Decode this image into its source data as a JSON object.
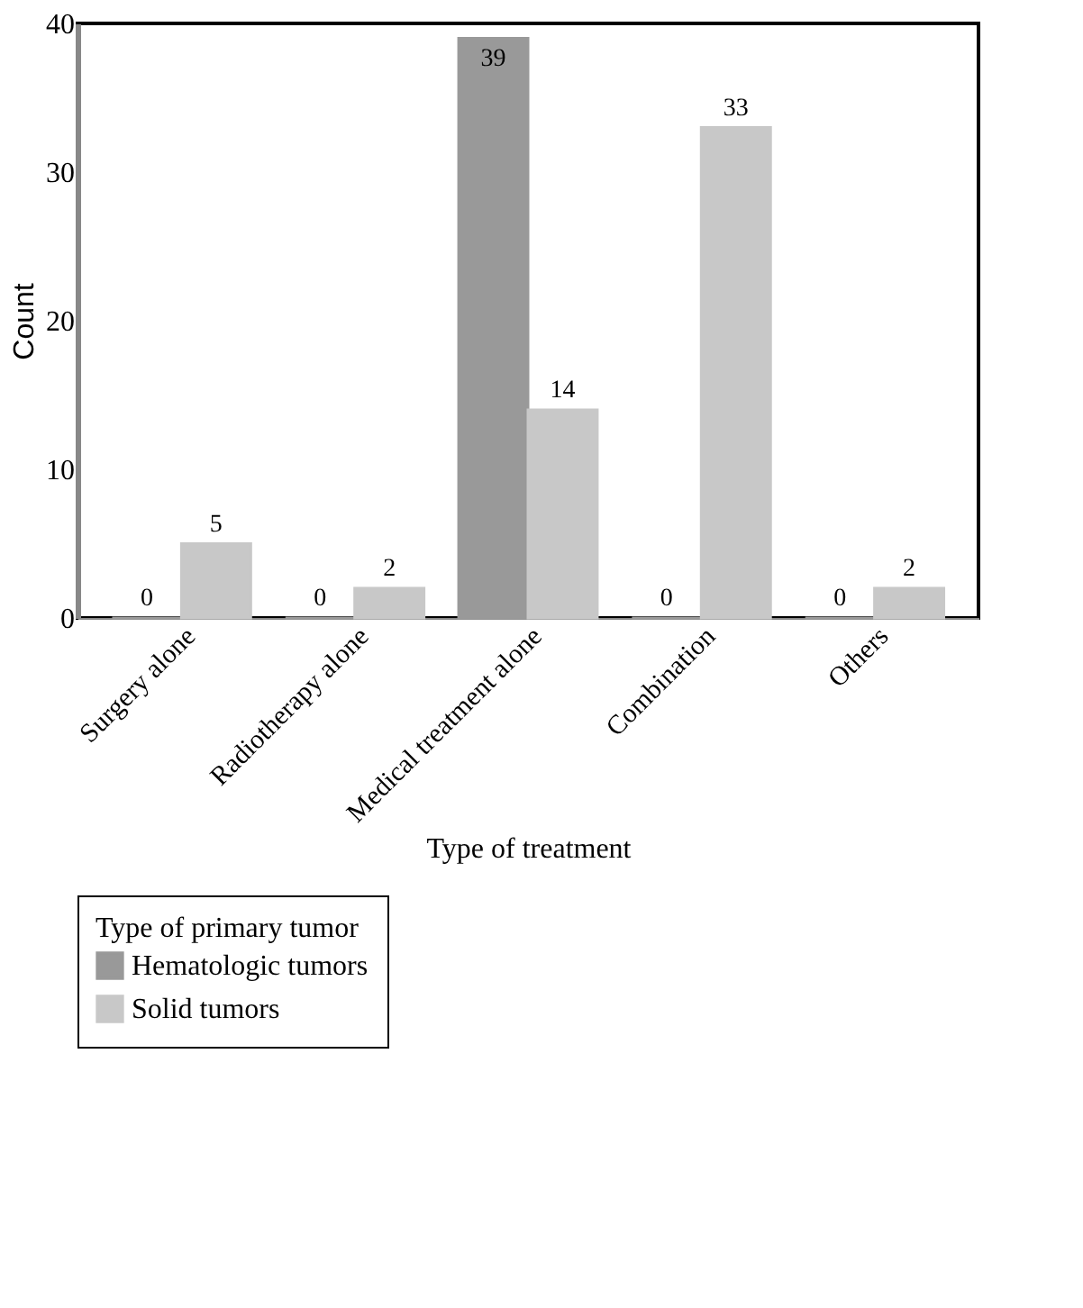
{
  "chart_data": {
    "type": "bar",
    "categories": [
      "Surgery alone",
      "Radiotherapy alone",
      "Medical treatment alone",
      "Combination",
      "Others"
    ],
    "xlabel": "Type of treatment",
    "ylabel": "Count",
    "legend_title": "Type of primary tumor",
    "ylim": [
      0,
      40
    ],
    "yticks": [
      0,
      10,
      20,
      30,
      40
    ],
    "grid": false,
    "legend": "bottom",
    "series": [
      {
        "name": "Hematologic tumors",
        "color": "#999999",
        "values": [
          0,
          0,
          39,
          0,
          0
        ]
      },
      {
        "name": "Solid tumors",
        "color": "#c8c8c8",
        "values": [
          5,
          2,
          14,
          33,
          2
        ]
      }
    ],
    "data_labels": true
  }
}
